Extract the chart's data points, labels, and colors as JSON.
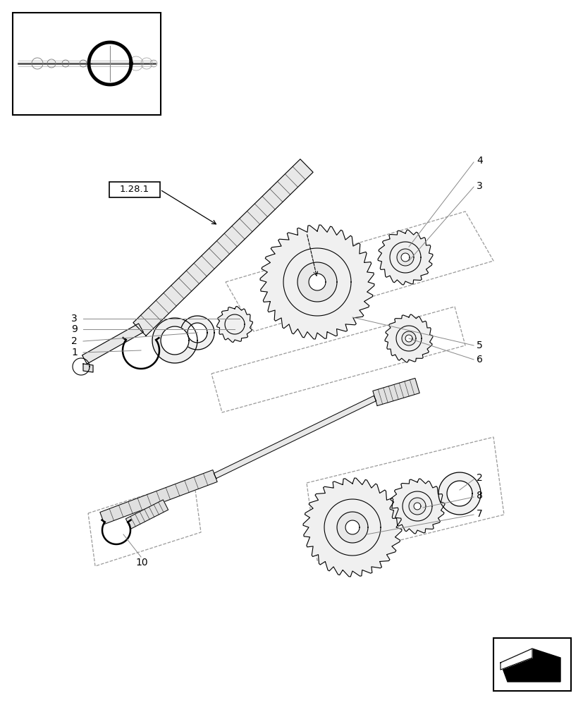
{
  "bg_color": "#ffffff",
  "line_color": "#000000",
  "gray_color": "#888888",
  "light_gray": "#cccccc",
  "fig_width": 8.28,
  "fig_height": 10.0,
  "part_label_1_28_1": "1.28.1"
}
